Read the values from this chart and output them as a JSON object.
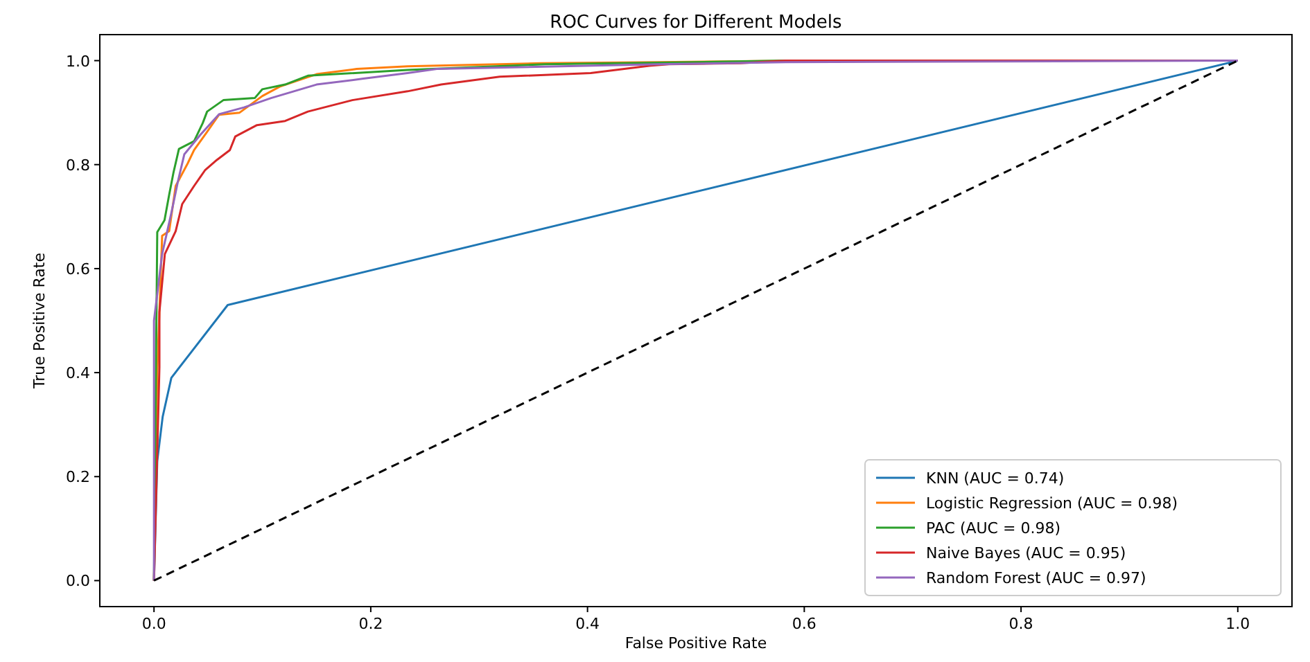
{
  "chart_data": {
    "type": "line",
    "title": "ROC Curves for Different Models",
    "xlabel": "False Positive Rate",
    "ylabel": "True Positive Rate",
    "xlim": [
      -0.05,
      1.05
    ],
    "ylim": [
      -0.05,
      1.05
    ],
    "xticks": [
      {
        "value": 0,
        "label": "0.0"
      },
      0.2,
      0.4,
      0.6,
      0.8,
      {
        "value": 1,
        "label": "1.0"
      }
    ],
    "yticks": [
      {
        "value": 0,
        "label": "0.0"
      },
      0.2,
      0.4,
      0.6,
      0.8,
      {
        "value": 1,
        "label": "1.0"
      }
    ],
    "grid": false,
    "legend": "bottom right",
    "marker": "none",
    "series": [
      {
        "name": "KNN (AUC = 0.74)",
        "color": "#1f77b4",
        "x": [
          0,
          0.003,
          0.008,
          0.016,
          0.068,
          1
        ],
        "values": [
          0,
          0.23,
          0.315,
          0.39,
          0.53,
          1
        ]
      },
      {
        "name": "Logistic Regression (AUC = 0.98)",
        "color": "#ff7f0e",
        "x": [
          0,
          0.003,
          0.0075,
          0.014,
          0.02,
          0.031,
          0.037,
          0.049,
          0.06,
          0.079,
          0.1,
          0.116,
          0.15,
          0.187,
          0.234,
          0.357,
          0.466,
          0.6,
          1
        ],
        "values": [
          0,
          0.4,
          0.663,
          0.672,
          0.759,
          0.802,
          0.828,
          0.863,
          0.896,
          0.9,
          0.932,
          0.95,
          0.974,
          0.984,
          0.989,
          0.995,
          0.997,
          1,
          1
        ]
      },
      {
        "name": "PAC (AUC = 0.98)",
        "color": "#2ca02c",
        "x": [
          0,
          0.003,
          0.0097,
          0.014,
          0.018,
          0.023,
          0.037,
          0.045,
          0.049,
          0.064,
          0.093,
          0.1,
          0.121,
          0.142,
          0.234,
          0.361,
          0.466,
          0.583,
          1
        ],
        "values": [
          0,
          0.67,
          0.693,
          0.742,
          0.785,
          0.83,
          0.845,
          0.88,
          0.902,
          0.924,
          0.928,
          0.945,
          0.954,
          0.971,
          0.982,
          0.993,
          0.996,
          1,
          1
        ]
      },
      {
        "name": "Naive Bayes (AUC = 0.95)",
        "color": "#d62728",
        "x": [
          0,
          0.005,
          0.005,
          0.01,
          0.02,
          0.026,
          0.037,
          0.047,
          0.058,
          0.07,
          0.075,
          0.095,
          0.121,
          0.142,
          0.183,
          0.234,
          0.265,
          0.319,
          0.403,
          0.457,
          0.475,
          0.541,
          0.583,
          1
        ],
        "values": [
          0,
          0.41,
          0.516,
          0.628,
          0.672,
          0.724,
          0.759,
          0.789,
          0.809,
          0.828,
          0.854,
          0.876,
          0.884,
          0.902,
          0.924,
          0.941,
          0.954,
          0.969,
          0.976,
          0.99,
          0.993,
          0.995,
          1,
          1
        ]
      },
      {
        "name": "Random Forest (AUC = 0.97)",
        "color": "#9467bd",
        "x": [
          0,
          0,
          0.0075,
          0.016,
          0.022,
          0.028,
          0.043,
          0.06,
          0.083,
          0.108,
          0.15,
          0.192,
          0.234,
          0.261,
          0.466,
          0.583,
          1
        ],
        "values": [
          0,
          0.5,
          0.628,
          0.707,
          0.767,
          0.82,
          0.858,
          0.897,
          0.91,
          0.928,
          0.954,
          0.965,
          0.976,
          0.984,
          0.993,
          0.997,
          1
        ]
      },
      {
        "color": "#000000",
        "line_style": "dashed",
        "x": [
          0,
          1
        ],
        "values": [
          0,
          1
        ]
      }
    ]
  }
}
